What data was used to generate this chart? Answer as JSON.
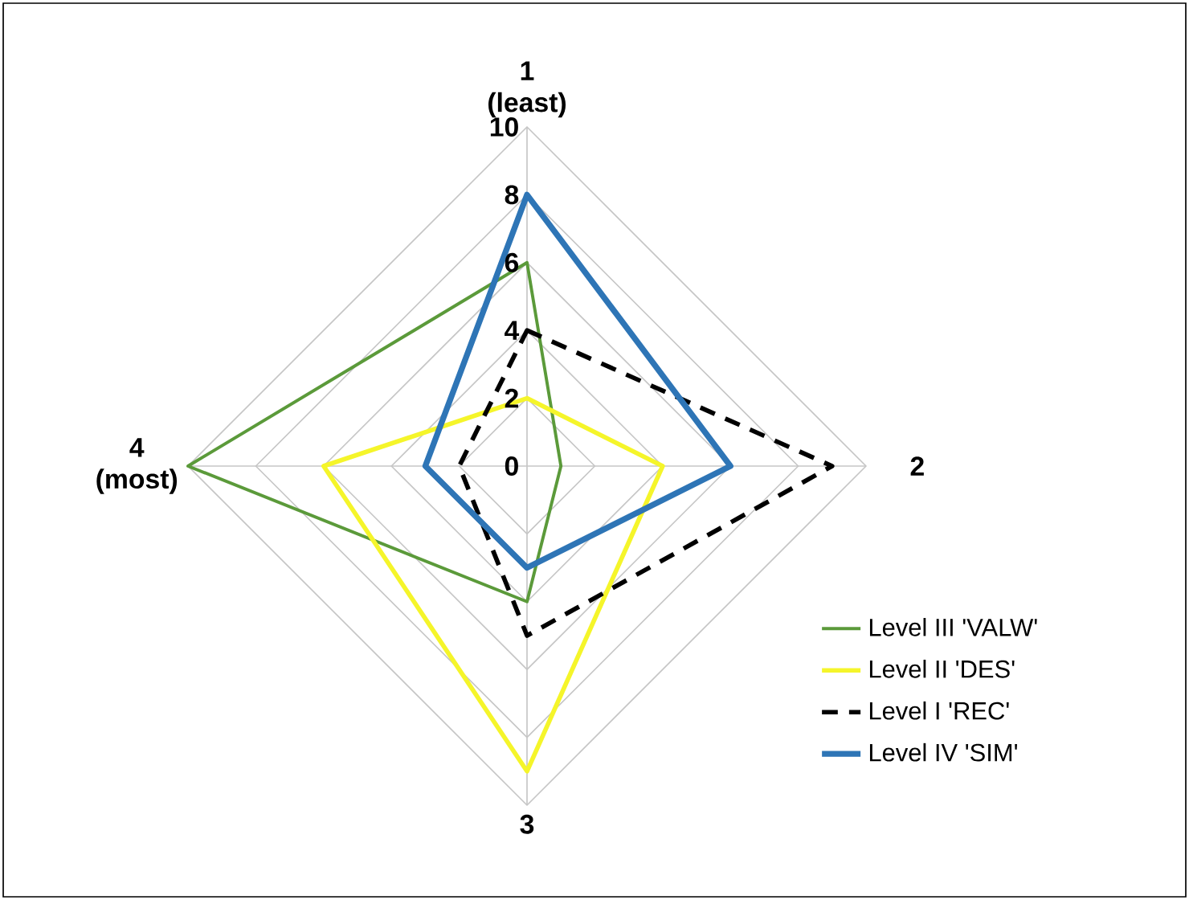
{
  "chart_data": {
    "type": "radar",
    "categories": [
      "1 (least)",
      "2",
      "3",
      "4 (most)"
    ],
    "ylim": [
      0,
      10
    ],
    "yticks": [
      0,
      2,
      4,
      6,
      8,
      10
    ],
    "grid": true,
    "legend": "bottom right",
    "series": [
      {
        "name": "Level III 'VALW'",
        "color": "#5b9a3a",
        "values": [
          6,
          1,
          4,
          10
        ]
      },
      {
        "name": "Level II 'DES'",
        "color": "#f5f52a",
        "values": [
          2,
          4,
          9,
          6
        ]
      },
      {
        "name": "Level I 'REC'",
        "color": "#000000",
        "values": [
          4,
          9,
          5,
          2
        ],
        "line_style": "dashed"
      },
      {
        "name": "Level IV 'SIM'",
        "color": "#2e75b6",
        "values": [
          8,
          6,
          3,
          3
        ]
      }
    ]
  }
}
